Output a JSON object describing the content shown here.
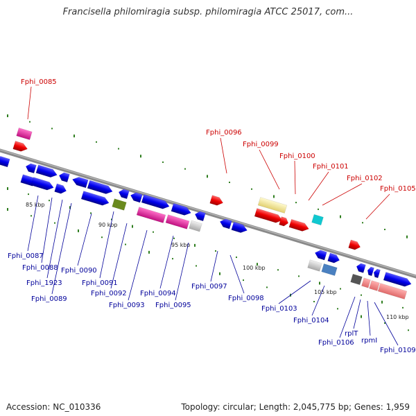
{
  "title": "Francisella philomiragia subsp. philomiragia ATCC 25017, com...",
  "footer": {
    "accession": "Accession: NC_010336",
    "summary": "Topology: circular; Length: 2,045,775 bp; Genes: 1,959"
  },
  "ticks": [
    "85 kbp",
    "90 kbp",
    "95 kbp",
    "100 kbp",
    "105 kbp",
    "110 kbp"
  ],
  "colors": {
    "backbone": "#888888",
    "forward_cds": "#ff0000",
    "reverse_cds": "#0000ff",
    "dot": "#2e7d1e",
    "label_top": "#cc0000",
    "label_bottom": "#00009a"
  },
  "labels_top": [
    "Fphi_0085",
    "Fphi_0096",
    "Fphi_0099",
    "Fphi_0100",
    "Fphi_0101",
    "Fphi_0102",
    "Fphi_0105"
  ],
  "labels_bottom": [
    "Fphi_0087",
    "Fphi_0088",
    "Fphi_1923",
    "Fphi_0089",
    "Fphi_0090",
    "Fphi_0091",
    "Fphi_0092",
    "Fphi_0093",
    "Fphi_0094",
    "Fphi_0095",
    "Fphi_0097",
    "Fphi_0098",
    "Fphi_0103",
    "Fphi_0104",
    "Fphi_0106",
    "rplT",
    "rpmI",
    "Fphi_0109"
  ]
}
